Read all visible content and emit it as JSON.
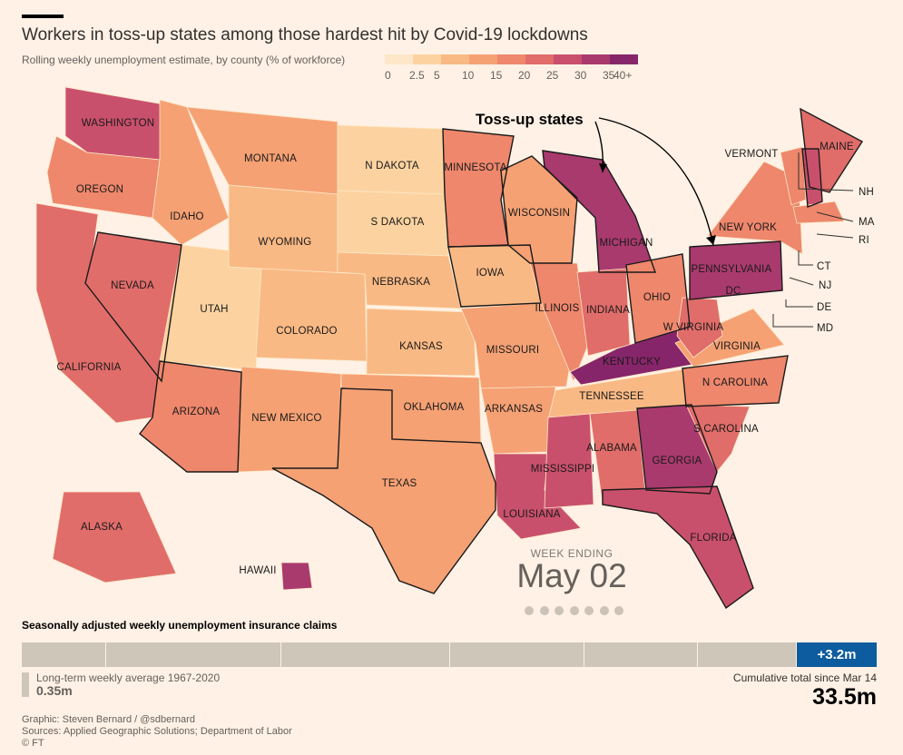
{
  "title": "Workers in toss-up states among those hardest hit by Covid-19 lockdowns",
  "subtitle": "Rolling weekly unemployment estimate, by county (% of workforce)",
  "legend": {
    "colors": [
      "#fde7c8",
      "#fcd3a0",
      "#f9b984",
      "#f5a174",
      "#ee876c",
      "#e06d6a",
      "#c9506c",
      "#a93a6e",
      "#87256a"
    ],
    "ticks": [
      "0",
      "2.5",
      "5",
      "10",
      "15",
      "20",
      "25",
      "30",
      "35",
      "40+"
    ]
  },
  "callout": "Toss-up states",
  "states": [
    "WASHINGTON",
    "OREGON",
    "CALIFORNIA",
    "NEVADA",
    "IDAHO",
    "MONTANA",
    "WYOMING",
    "UTAH",
    "ARIZONA",
    "COLORADO",
    "NEW MEXICO",
    "N DAKOTA",
    "S DAKOTA",
    "NEBRASKA",
    "KANSAS",
    "OKLAHOMA",
    "TEXAS",
    "MINNESOTA",
    "IOWA",
    "MISSOURI",
    "ARKANSAS",
    "LOUISIANA",
    "WISCONSIN",
    "ILLINOIS",
    "MICHIGAN",
    "INDIANA",
    "OHIO",
    "KENTUCKY",
    "TENNESSEE",
    "MISSISSIPPI",
    "ALABAMA",
    "GEORGIA",
    "FLORIDA",
    "S CAROLINA",
    "N CAROLINA",
    "VIRGINIA",
    "W VIRGINIA",
    "PENNSYLVANIA",
    "NEW YORK",
    "VERMONT",
    "MAINE",
    "NH",
    "MA",
    "RI",
    "CT",
    "NJ",
    "DE",
    "MD",
    "DC",
    "ALASKA",
    "HAWAII"
  ],
  "week_label": "WEEK ENDING",
  "week_date": "May 02",
  "claims": {
    "title": "Seasonally adjusted weekly unemployment insurance claims",
    "current": "+3.2m",
    "avg_label": "Long-term weekly average 1967-2020",
    "avg_value": "0.35m",
    "cum_label": "Cumulative total since Mar 14",
    "cum_value": "33.5m"
  },
  "credits": [
    "Graphic: Steven Bernard / @sdbernard",
    "Sources: Applied Geographic Solutions; Department of Labor",
    "© FT"
  ]
}
